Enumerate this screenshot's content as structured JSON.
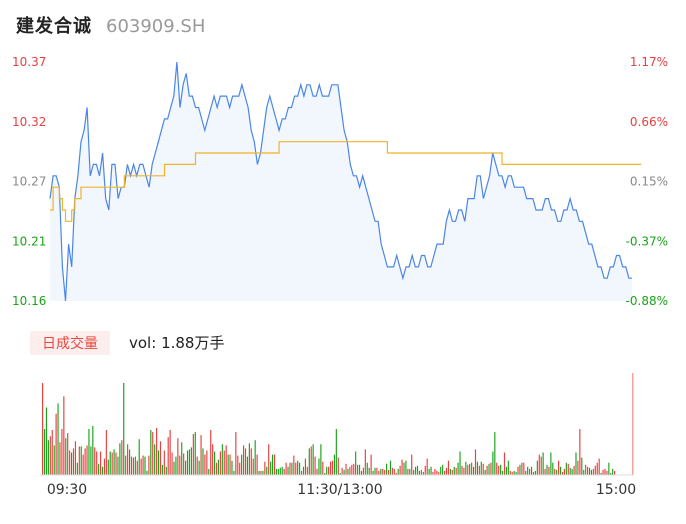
{
  "header": {
    "name": "建发合诚",
    "code": "603909.SH"
  },
  "volume_tab": {
    "label": "日成交量",
    "vol_label": "vol:",
    "vol_value": "1.88万手"
  },
  "colors": {
    "up": "#e84040",
    "down": "#1aa31a",
    "price_line": "#4a86e8",
    "avg_line": "#f0b429"
  },
  "chart_data": [
    {
      "type": "line",
      "title": "",
      "y_left_ticks": [
        "10.37",
        "10.32",
        "10.27",
        "10.21",
        "10.16"
      ],
      "y_right_ticks": [
        "1.17%",
        "0.66%",
        "0.15%",
        "-0.37%",
        "-0.88%"
      ],
      "x_ticks": [
        "09:30",
        "11:30/13:00",
        "15:00"
      ],
      "ylim": [
        10.16,
        10.37
      ],
      "series": [
        {
          "role": "price",
          "values": [
            10.25,
            10.27,
            10.27,
            10.26,
            10.19,
            10.16,
            10.21,
            10.19,
            10.25,
            10.27,
            10.3,
            10.31,
            10.33,
            10.27,
            10.28,
            10.28,
            10.27,
            10.29,
            10.25,
            10.24,
            10.28,
            10.28,
            10.25,
            10.26,
            10.26,
            10.28,
            10.27,
            10.28,
            10.27,
            10.28,
            10.28,
            10.27,
            10.26,
            10.28,
            10.29,
            10.3,
            10.31,
            10.32,
            10.32,
            10.33,
            10.34,
            10.37,
            10.33,
            10.35,
            10.36,
            10.34,
            10.34,
            10.33,
            10.33,
            10.32,
            10.31,
            10.32,
            10.33,
            10.34,
            10.33,
            10.34,
            10.34,
            10.34,
            10.33,
            10.34,
            10.34,
            10.34,
            10.35,
            10.34,
            10.33,
            10.31,
            10.3,
            10.28,
            10.29,
            10.31,
            10.33,
            10.34,
            10.33,
            10.32,
            10.31,
            10.32,
            10.32,
            10.33,
            10.33,
            10.34,
            10.34,
            10.35,
            10.34,
            10.35,
            10.35,
            10.34,
            10.34,
            10.35,
            10.34,
            10.34,
            10.34,
            10.35,
            10.35,
            10.35,
            10.33,
            10.31,
            10.3,
            10.28,
            10.27,
            10.27,
            10.26,
            10.27,
            10.26,
            10.25,
            10.24,
            10.23,
            10.23,
            10.21,
            10.2,
            10.19,
            10.19,
            10.19,
            10.2,
            10.19,
            10.18,
            10.19,
            10.19,
            10.2,
            10.19,
            10.19,
            10.2,
            10.2,
            10.19,
            10.19,
            10.2,
            10.21,
            10.21,
            10.21,
            10.23,
            10.24,
            10.23,
            10.23,
            10.24,
            10.24,
            10.23,
            10.25,
            10.25,
            10.25,
            10.27,
            10.27,
            10.25,
            10.26,
            10.27,
            10.29,
            10.28,
            10.27,
            10.27,
            10.26,
            10.27,
            10.27,
            10.26,
            10.26,
            10.26,
            10.26,
            10.25,
            10.25,
            10.25,
            10.24,
            10.24,
            10.24,
            10.25,
            10.25,
            10.24,
            10.24,
            10.23,
            10.23,
            10.24,
            10.24,
            10.25,
            10.24,
            10.24,
            10.23,
            10.23,
            10.22,
            10.21,
            10.21,
            10.2,
            10.19,
            10.19,
            10.18,
            10.18,
            10.19,
            10.19,
            10.2,
            10.2,
            10.19,
            10.19,
            10.18,
            10.18
          ]
        },
        {
          "role": "average",
          "values": [
            10.24,
            10.26,
            10.26,
            10.25,
            10.24,
            10.23,
            10.23,
            10.24,
            10.25,
            10.25,
            10.26,
            10.26,
            10.26,
            10.26,
            10.26,
            10.26,
            10.26,
            10.26,
            10.26,
            10.26,
            10.26,
            10.26,
            10.26,
            10.26,
            10.27,
            10.27,
            10.27,
            10.27,
            10.27,
            10.27,
            10.27,
            10.27,
            10.27,
            10.27,
            10.27,
            10.27,
            10.27,
            10.28,
            10.28,
            10.28,
            10.28,
            10.28,
            10.28,
            10.28,
            10.28,
            10.28,
            10.28,
            10.29,
            10.29,
            10.29,
            10.29,
            10.29,
            10.29,
            10.29,
            10.29,
            10.29,
            10.29,
            10.29,
            10.29,
            10.29,
            10.29,
            10.29,
            10.29,
            10.29,
            10.29,
            10.29,
            10.29,
            10.29,
            10.29,
            10.29,
            10.29,
            10.29,
            10.29,
            10.29,
            10.3,
            10.3,
            10.3,
            10.3,
            10.3,
            10.3,
            10.3,
            10.3,
            10.3,
            10.3,
            10.3,
            10.3,
            10.3,
            10.3,
            10.3,
            10.3,
            10.3,
            10.3,
            10.3,
            10.3,
            10.3,
            10.3,
            10.3,
            10.3,
            10.3,
            10.3,
            10.3,
            10.3,
            10.3,
            10.3,
            10.3,
            10.3,
            10.3,
            10.3,
            10.3,
            10.29,
            10.29,
            10.29,
            10.29,
            10.29,
            10.29,
            10.29,
            10.29,
            10.29,
            10.29,
            10.29,
            10.29,
            10.29,
            10.29,
            10.29,
            10.29,
            10.29,
            10.29,
            10.29,
            10.29,
            10.29,
            10.29,
            10.29,
            10.29,
            10.29,
            10.29,
            10.29,
            10.29,
            10.29,
            10.29,
            10.29,
            10.29,
            10.29,
            10.29,
            10.29,
            10.29,
            10.29,
            10.28,
            10.28,
            10.28,
            10.28,
            10.28,
            10.28,
            10.28,
            10.28,
            10.28,
            10.28,
            10.28,
            10.28,
            10.28,
            10.28,
            10.28,
            10.28,
            10.28,
            10.28,
            10.28,
            10.28,
            10.28,
            10.28,
            10.28,
            10.28,
            10.28,
            10.28,
            10.28,
            10.28,
            10.28,
            10.28,
            10.28,
            10.28,
            10.28,
            10.28,
            10.28,
            10.28,
            10.28,
            10.28,
            10.28,
            10.28,
            10.28,
            10.28,
            10.28,
            10.28,
            10.28,
            10.28
          ]
        }
      ]
    },
    {
      "type": "bar",
      "title": "",
      "values": [
        90,
        45,
        66,
        34,
        38,
        44,
        29,
        60,
        70,
        32,
        45,
        77,
        36,
        41,
        24,
        22,
        26,
        33,
        12,
        28,
        28,
        20,
        26,
        29,
        45,
        28,
        48,
        27,
        23,
        11,
        23,
        8,
        16,
        44,
        15,
        23,
        22,
        25,
        22,
        18,
        31,
        34,
        90,
        19,
        30,
        25,
        18,
        17,
        18,
        14,
        35,
        16,
        19,
        18,
        4,
        19,
        44,
        42,
        30,
        46,
        24,
        33,
        10,
        24,
        8,
        37,
        44,
        22,
        13,
        18,
        36,
        19,
        32,
        21,
        14,
        24,
        25,
        27,
        40,
        42,
        18,
        14,
        39,
        26,
        20,
        24,
        6,
        44,
        30,
        23,
        12,
        15,
        23,
        30,
        24,
        29,
        20,
        20,
        14,
        4,
        42,
        19,
        12,
        20,
        29,
        26,
        18,
        31,
        26,
        16,
        34,
        20,
        4,
        4,
        4,
        13,
        8,
        30,
        13,
        20,
        20,
        6,
        6,
        7,
        8,
        6,
        12,
        8,
        12,
        12,
        19,
        12,
        14,
        12,
        4,
        8,
        16,
        8,
        26,
        28,
        30,
        18,
        6,
        16,
        30,
        13,
        2,
        8,
        8,
        13,
        14,
        20,
        45,
        17,
        2,
        7,
        5,
        11,
        6,
        8,
        10,
        11,
        23,
        10,
        10,
        4,
        7,
        25,
        12,
        7,
        20,
        4,
        7,
        7,
        4,
        6,
        6,
        5,
        11,
        5,
        14,
        7,
        6,
        2,
        6,
        9,
        15,
        12,
        14,
        6,
        6,
        20,
        5,
        8,
        9,
        4,
        5,
        3,
        9,
        16,
        6,
        8,
        3,
        6,
        4,
        3,
        8,
        10,
        4,
        7,
        14,
        6,
        5,
        8,
        7,
        12,
        23,
        9,
        7,
        13,
        10,
        11,
        12,
        8,
        25,
        13,
        9,
        13,
        11,
        5,
        9,
        11,
        12,
        23,
        42,
        12,
        9,
        10,
        4,
        22,
        8,
        14,
        4,
        3,
        4,
        3,
        8,
        10,
        12,
        12,
        4,
        8,
        6,
        8,
        3,
        4,
        14,
        20,
        18,
        22,
        6,
        10,
        8,
        22,
        12,
        6,
        5,
        14,
        8,
        3,
        6,
        12,
        11,
        7,
        6,
        9,
        22,
        14,
        45,
        17,
        5,
        10,
        8,
        7,
        5,
        6,
        9,
        12,
        16,
        2,
        5,
        6,
        4,
        12,
        2,
        6,
        4
      ],
      "colors_up": [
        1,
        0,
        0,
        0,
        1,
        1,
        0,
        1,
        0,
        1,
        1,
        1,
        0,
        1,
        1,
        0,
        1,
        1,
        0,
        1,
        0,
        1,
        1,
        1,
        0,
        0,
        0,
        1,
        1,
        0,
        1,
        0,
        1,
        1,
        0,
        0,
        1,
        0,
        1,
        0,
        0,
        1,
        0,
        1,
        1,
        0,
        1,
        1,
        0,
        1,
        0,
        1,
        1,
        0,
        0,
        1,
        0,
        1,
        0,
        1,
        0,
        1,
        0,
        1,
        0,
        1,
        1,
        1,
        0,
        0,
        1,
        1,
        0,
        1,
        0,
        0,
        0,
        0,
        1,
        0,
        1,
        0,
        1,
        0,
        1,
        1,
        0,
        1,
        1,
        0,
        1,
        0,
        1,
        0,
        1,
        1,
        0,
        1,
        0,
        0,
        1,
        1,
        1,
        0,
        1,
        1,
        0,
        0,
        1,
        1,
        0,
        1,
        0,
        1,
        0,
        1,
        0,
        1,
        0,
        0,
        1,
        0,
        0,
        0,
        0,
        1,
        1,
        0,
        1,
        0,
        1,
        1,
        0,
        0,
        1,
        0,
        1,
        1,
        0,
        1,
        0,
        1,
        1,
        0,
        0,
        1,
        0,
        0,
        1,
        1,
        1,
        0,
        0,
        1,
        0,
        1,
        0,
        1,
        0,
        1,
        1,
        1,
        0,
        1,
        0,
        0,
        1,
        1,
        0,
        0,
        1,
        0,
        0,
        1,
        1,
        0,
        1,
        1,
        0,
        1,
        0,
        1,
        1,
        1,
        0,
        1,
        1,
        0,
        0,
        1,
        0,
        1,
        0,
        0,
        0,
        0,
        1,
        0,
        1,
        1,
        0,
        0,
        1,
        1,
        1,
        1,
        0,
        0,
        1,
        1,
        1,
        0,
        1,
        0,
        1,
        0,
        0,
        1,
        1,
        0,
        1,
        0,
        1,
        0,
        1,
        0,
        1,
        0,
        1,
        0,
        1,
        0,
        1,
        0,
        0,
        1,
        1,
        0,
        0,
        1,
        0,
        0,
        1,
        1,
        0,
        0,
        1,
        0,
        1,
        1,
        0,
        0,
        1,
        0,
        1,
        0,
        0,
        1,
        1,
        0,
        1,
        0,
        1,
        0,
        0,
        1,
        0,
        1,
        0,
        1,
        1,
        0,
        1,
        0,
        0,
        1,
        0,
        1,
        1,
        0,
        0,
        1,
        1,
        0,
        0,
        1,
        1,
        1,
        1,
        0,
        1,
        1
      ]
    }
  ]
}
